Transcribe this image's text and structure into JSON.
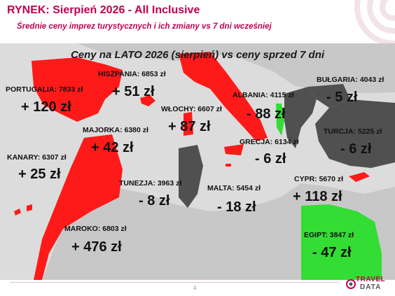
{
  "header": {
    "title": "RYNEK: Sierpień 2026 - All Inclusive",
    "subtitle": "Średnie ceny imprez turystycznych i ich zmiany vs 7 dni wcześniej"
  },
  "map": {
    "heading": "Ceny na LATO 2026 (sierpień) vs ceny sprzed 7 dni",
    "colors": {
      "increase": "#ff1a1a",
      "decrease": "#505050",
      "neutral_land": "#c8c8c8",
      "sea": "#dcdcdc",
      "highlight": "#33dd33"
    },
    "countries": [
      {
        "id": "portugalia",
        "label": "PORTUGALIA: 7833 zł",
        "change": "+ 120 zł",
        "direction": "up"
      },
      {
        "id": "hiszpania",
        "label": "HISZPANIA: 6853 zł",
        "change": "+ 51 zł",
        "direction": "up"
      },
      {
        "id": "wlochy",
        "label": "WŁOCHY: 6607 zł",
        "change": "+ 87 zł",
        "direction": "up"
      },
      {
        "id": "majorka",
        "label": "MAJORKA: 6380 zł",
        "change": "+ 42 zł",
        "direction": "up"
      },
      {
        "id": "albania",
        "label": "ALBANIA: 4115 zł",
        "change": "- 88 zł",
        "direction": "down"
      },
      {
        "id": "bulgaria",
        "label": "BUŁGARIA: 4043 zł",
        "change": "- 5 zł",
        "direction": "down"
      },
      {
        "id": "turcja",
        "label": "TURCJA: 5225 zł",
        "change": "- 6 zł",
        "direction": "down"
      },
      {
        "id": "grecja",
        "label": "GRECJA: 6134 zł",
        "change": "- 6 zł",
        "direction": "down"
      },
      {
        "id": "kanary",
        "label": "KANARY: 6307 zł",
        "change": "+ 25 zł",
        "direction": "up"
      },
      {
        "id": "tunezja",
        "label": "TUNEZJA: 3963 zł",
        "change": "- 8 zł",
        "direction": "down"
      },
      {
        "id": "malta",
        "label": "MALTA: 5454 zł",
        "change": "- 18 zł",
        "direction": "down"
      },
      {
        "id": "cypr",
        "label": "CYPR: 5670 zł",
        "change": "+ 118 zł",
        "direction": "up"
      },
      {
        "id": "maroko",
        "label": "MAROKO: 6803 zł",
        "change": "+ 476 zł",
        "direction": "up"
      },
      {
        "id": "egipt",
        "label": "EGIPT: 3847 zł",
        "change": "- 47 zł",
        "direction": "down"
      }
    ]
  },
  "footer": {
    "page_number": "4",
    "logo_text_1": "TRAVEL",
    "logo_text_2": "DATA"
  }
}
